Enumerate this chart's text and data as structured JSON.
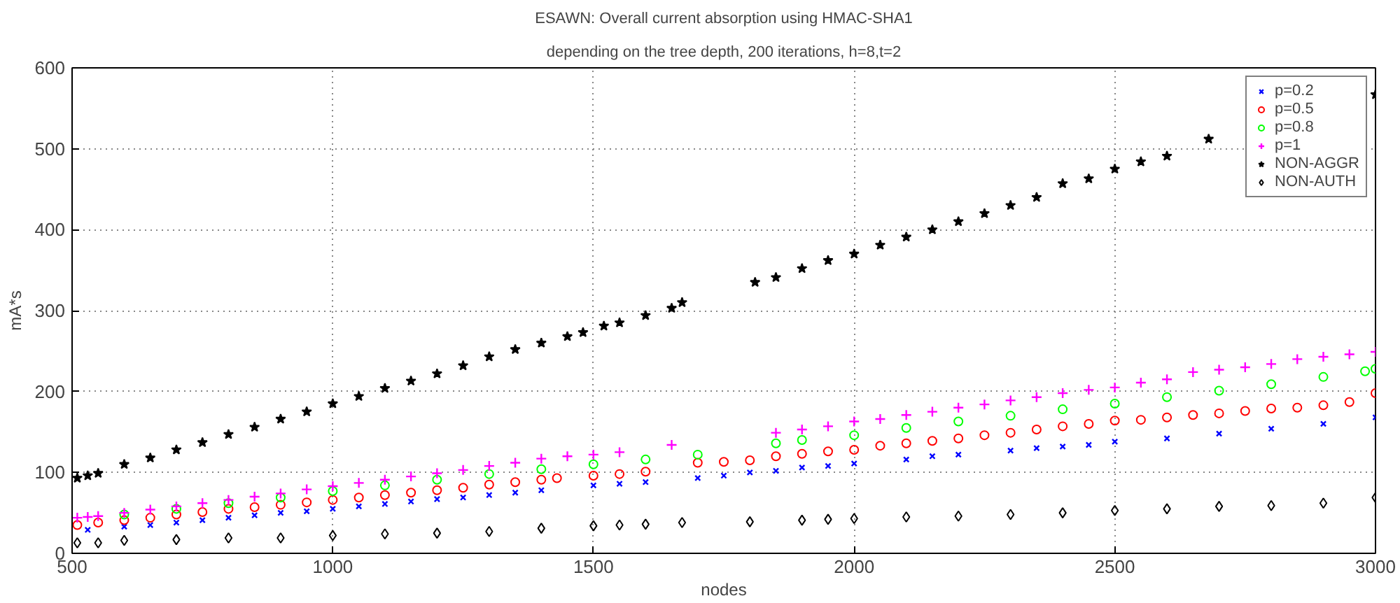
{
  "chart_data": {
    "type": "scatter",
    "title": "ESAWN: Overall current absorption using HMAC-SHA1",
    "subtitle": "depending on the tree depth, 200 iterations, h=8,t=2",
    "xlabel": "nodes",
    "ylabel": "mA*s",
    "xlim": [
      500,
      3000
    ],
    "xticks": [
      500,
      1000,
      1500,
      2000,
      2500,
      3000
    ],
    "ylim": [
      0,
      600
    ],
    "yticks": [
      0,
      100,
      200,
      300,
      400,
      500,
      600
    ],
    "grid": true,
    "legend": "top right",
    "series": [
      {
        "name": "p=0.2",
        "color": "#0000ff",
        "marker": "x",
        "x": [
          530,
          600,
          650,
          700,
          750,
          800,
          850,
          900,
          950,
          1000,
          1050,
          1100,
          1150,
          1200,
          1250,
          1300,
          1350,
          1400,
          1500,
          1550,
          1600,
          1700,
          1750,
          1800,
          1850,
          1900,
          1950,
          2000,
          2100,
          2150,
          2200,
          2300,
          2350,
          2400,
          2450,
          2500,
          2600,
          2700,
          2800,
          2900,
          3000
        ],
        "values": [
          29,
          33,
          35,
          38,
          41,
          44,
          47,
          50,
          52,
          55,
          58,
          61,
          64,
          67,
          69,
          72,
          75,
          78,
          84,
          86,
          88,
          93,
          96,
          100,
          102,
          106,
          108,
          111,
          116,
          120,
          122,
          127,
          130,
          132,
          134,
          138,
          142,
          148,
          154,
          160,
          168
        ]
      },
      {
        "name": "p=0.5",
        "color": "#ff0000",
        "marker": "circle",
        "x": [
          510,
          550,
          600,
          650,
          700,
          750,
          800,
          850,
          900,
          950,
          1000,
          1050,
          1100,
          1150,
          1200,
          1250,
          1300,
          1350,
          1400,
          1430,
          1500,
          1550,
          1600,
          1700,
          1750,
          1800,
          1850,
          1900,
          1950,
          2000,
          2050,
          2100,
          2150,
          2200,
          2250,
          2300,
          2350,
          2400,
          2450,
          2500,
          2550,
          2600,
          2650,
          2700,
          2750,
          2800,
          2850,
          2900,
          2950,
          3000
        ],
        "values": [
          35,
          38,
          41,
          44,
          48,
          51,
          55,
          57,
          60,
          63,
          66,
          69,
          72,
          75,
          78,
          81,
          85,
          88,
          91,
          93,
          96,
          98,
          101,
          112,
          113,
          115,
          120,
          123,
          126,
          128,
          133,
          136,
          139,
          142,
          146,
          149,
          153,
          157,
          160,
          164,
          165,
          168,
          171,
          173,
          176,
          179,
          180,
          183,
          187,
          198
        ]
      },
      {
        "name": "p=0.8",
        "color": "#00ff00",
        "marker": "circle",
        "x": [
          600,
          700,
          800,
          900,
          1000,
          1100,
          1200,
          1300,
          1400,
          1500,
          1600,
          1700,
          1850,
          1900,
          2000,
          2100,
          2200,
          2300,
          2400,
          2500,
          2600,
          2700,
          2800,
          2900,
          2980,
          3000
        ],
        "values": [
          48,
          55,
          62,
          69,
          77,
          84,
          91,
          98,
          104,
          110,
          116,
          122,
          136,
          140,
          146,
          155,
          163,
          170,
          178,
          185,
          193,
          201,
          209,
          218,
          225,
          228
        ]
      },
      {
        "name": "p=1",
        "color": "#ff00ff",
        "marker": "cross",
        "x": [
          510,
          530,
          550,
          600,
          650,
          700,
          750,
          800,
          850,
          900,
          950,
          1000,
          1050,
          1100,
          1150,
          1200,
          1250,
          1300,
          1350,
          1400,
          1450,
          1500,
          1550,
          1650,
          1850,
          1900,
          1950,
          2000,
          2050,
          2100,
          2150,
          2200,
          2250,
          2300,
          2350,
          2400,
          2450,
          2500,
          2550,
          2600,
          2650,
          2700,
          2750,
          2800,
          2850,
          2900,
          2950,
          3000
        ],
        "values": [
          44,
          45,
          46,
          50,
          54,
          58,
          62,
          66,
          70,
          74,
          79,
          83,
          87,
          91,
          95,
          99,
          103,
          108,
          112,
          117,
          120,
          122,
          125,
          134,
          149,
          153,
          157,
          163,
          166,
          171,
          175,
          180,
          184,
          189,
          193,
          198,
          202,
          205,
          211,
          215,
          224,
          227,
          230,
          234,
          240,
          243,
          246,
          249
        ]
      },
      {
        "name": "NON-AGGR",
        "color": "#000000",
        "marker": "star",
        "x": [
          510,
          530,
          550,
          600,
          650,
          700,
          750,
          800,
          850,
          900,
          950,
          1000,
          1050,
          1100,
          1150,
          1200,
          1250,
          1300,
          1350,
          1400,
          1450,
          1480,
          1520,
          1550,
          1600,
          1650,
          1670,
          1810,
          1850,
          1900,
          1950,
          2000,
          2050,
          2100,
          2150,
          2200,
          2250,
          2300,
          2350,
          2400,
          2450,
          2500,
          2550,
          2600,
          2680,
          3000
        ],
        "values": [
          93,
          96,
          99,
          110,
          118,
          128,
          137,
          147,
          156,
          166,
          175,
          185,
          194,
          204,
          213,
          222,
          232,
          243,
          252,
          260,
          268,
          273,
          281,
          285,
          294,
          303,
          310,
          335,
          341,
          352,
          362,
          370,
          381,
          391,
          400,
          410,
          420,
          430,
          440,
          457,
          463,
          475,
          484,
          491,
          512,
          567
        ]
      },
      {
        "name": "NON-AUTH",
        "color": "#000000",
        "marker": "diamond",
        "x": [
          510,
          550,
          600,
          700,
          800,
          900,
          1000,
          1100,
          1200,
          1300,
          1400,
          1500,
          1550,
          1600,
          1670,
          1800,
          1900,
          1950,
          2000,
          2100,
          2200,
          2300,
          2400,
          2500,
          2600,
          2700,
          2800,
          2900,
          3000
        ],
        "values": [
          13,
          13,
          16,
          17,
          19,
          19,
          22,
          24,
          25,
          27,
          31,
          34,
          35,
          36,
          38,
          39,
          41,
          42,
          43,
          45,
          46,
          48,
          50,
          53,
          55,
          58,
          59,
          62,
          69
        ]
      }
    ]
  }
}
